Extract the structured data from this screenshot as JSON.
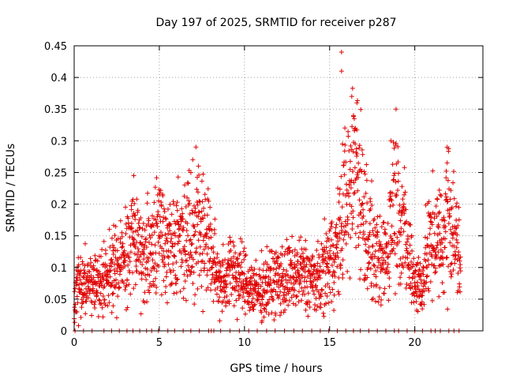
{
  "chart_data": {
    "type": "scatter",
    "title": "Day 197 of 2025, SRMTID for receiver p287",
    "xlabel": "GPS time / hours",
    "ylabel": "SRMTID / TECUs",
    "xlim": [
      0,
      24.0
    ],
    "ylim": [
      0,
      0.45
    ],
    "xticks": [
      0,
      5,
      10,
      15,
      20
    ],
    "xtick_labels": [
      "0",
      "5",
      "10",
      "15",
      "20"
    ],
    "yticks": [
      0,
      0.05,
      0.1,
      0.15,
      0.2,
      0.25,
      0.3,
      0.35,
      0.4,
      0.45
    ],
    "ytick_labels": [
      "0",
      "0.05",
      "0.1",
      "0.15",
      "0.2",
      "0.25",
      "0.3",
      "0.35",
      "0.4",
      "0.45"
    ],
    "grid": true,
    "marker": "+",
    "color": "#e00000",
    "series": [
      {
        "name": "SRMTID",
        "trend": [
          [
            0.0,
            0.04
          ],
          [
            0.3,
            0.085
          ],
          [
            0.6,
            0.075
          ],
          [
            1.0,
            0.07
          ],
          [
            1.5,
            0.08
          ],
          [
            2.0,
            0.09
          ],
          [
            2.5,
            0.1
          ],
          [
            3.0,
            0.11
          ],
          [
            3.5,
            0.15
          ],
          [
            3.8,
            0.13
          ],
          [
            4.2,
            0.12
          ],
          [
            4.6,
            0.14
          ],
          [
            5.0,
            0.17
          ],
          [
            5.5,
            0.13
          ],
          [
            6.0,
            0.14
          ],
          [
            6.5,
            0.15
          ],
          [
            7.0,
            0.17
          ],
          [
            7.5,
            0.16
          ],
          [
            7.9,
            0.14
          ],
          [
            8.3,
            0.09
          ],
          [
            8.8,
            0.08
          ],
          [
            9.3,
            0.1
          ],
          [
            9.8,
            0.08
          ],
          [
            10.3,
            0.07
          ],
          [
            10.8,
            0.06
          ],
          [
            11.3,
            0.075
          ],
          [
            11.8,
            0.08
          ],
          [
            12.3,
            0.08
          ],
          [
            12.8,
            0.085
          ],
          [
            13.3,
            0.09
          ],
          [
            13.8,
            0.085
          ],
          [
            14.3,
            0.075
          ],
          [
            14.8,
            0.1
          ],
          [
            15.2,
            0.12
          ],
          [
            15.6,
            0.14
          ],
          [
            15.9,
            0.22
          ],
          [
            16.2,
            0.2
          ],
          [
            16.5,
            0.28
          ],
          [
            16.8,
            0.22
          ],
          [
            17.1,
            0.17
          ],
          [
            17.4,
            0.14
          ],
          [
            17.7,
            0.11
          ],
          [
            18.0,
            0.1
          ],
          [
            18.4,
            0.13
          ],
          [
            18.8,
            0.22
          ],
          [
            19.2,
            0.18
          ],
          [
            19.6,
            0.12
          ],
          [
            20.0,
            0.08
          ],
          [
            20.4,
            0.07
          ],
          [
            20.8,
            0.13
          ],
          [
            21.2,
            0.15
          ],
          [
            21.6,
            0.13
          ],
          [
            22.0,
            0.2
          ],
          [
            22.4,
            0.14
          ],
          [
            22.7,
            0.11
          ]
        ],
        "spikes": [
          [
            15.7,
            0.44
          ],
          [
            15.7,
            0.41
          ],
          [
            16.3,
            0.37
          ],
          [
            16.6,
            0.36
          ],
          [
            18.9,
            0.35
          ],
          [
            18.6,
            0.3
          ],
          [
            16.4,
            0.34
          ],
          [
            21.9,
            0.29
          ],
          [
            7.3,
            0.26
          ],
          [
            3.5,
            0.245
          ]
        ],
        "zero_points": [
          0.05,
          0.55,
          1.05,
          1.75,
          2.2,
          2.65,
          3.1,
          3.45,
          3.85,
          4.25,
          4.55,
          4.95,
          5.5,
          5.9,
          6.4,
          6.85,
          7.35,
          7.9,
          8.05,
          8.2,
          8.6,
          9.15,
          9.7,
          10.25,
          10.75,
          11.3,
          11.8,
          12.35,
          12.9,
          13.4,
          13.95,
          14.45,
          14.95,
          15.45,
          15.95,
          16.4,
          16.8,
          17.3,
          17.8,
          18.3,
          18.8,
          19.05,
          19.55,
          20.0,
          20.45,
          20.95,
          21.2,
          21.5,
          22.0,
          22.3,
          22.6
        ]
      }
    ]
  }
}
